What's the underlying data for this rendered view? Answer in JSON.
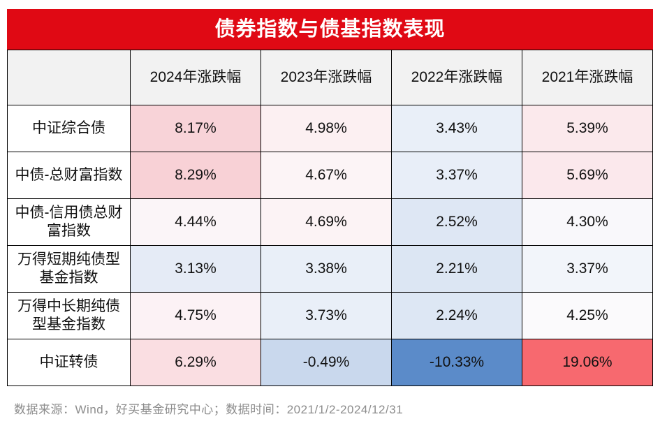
{
  "title": "债券指数与债基指数表现",
  "colors": {
    "title_bg": "#E00914",
    "title_text": "#FFFFFF",
    "header_bg": "#F2F2F2",
    "border": "#000000",
    "footer_text": "#8C8C8C",
    "strong_red": "#F7696F",
    "strong_blue": "#5B8BC9"
  },
  "chart_data": {
    "type": "table",
    "subtype": "heatmap",
    "title": "债券指数与债基指数表现",
    "columns": [
      "",
      "2024年涨跌幅",
      "2023年涨跌幅",
      "2022年涨跌幅",
      "2021年涨跌幅"
    ],
    "rows": [
      {
        "label": "中证综合债",
        "values": [
          "8.17%",
          "4.98%",
          "3.43%",
          "5.39%"
        ],
        "numeric": [
          8.17,
          4.98,
          3.43,
          5.39
        ],
        "colors": [
          "#F8D3D8",
          "#FCF0F2",
          "#E9EFF8",
          "#FBE9EC"
        ]
      },
      {
        "label": "中债-总财富指数",
        "values": [
          "8.29%",
          "4.67%",
          "3.37%",
          "5.69%"
        ],
        "numeric": [
          8.29,
          4.67,
          3.37,
          5.69
        ],
        "colors": [
          "#F8D1D6",
          "#FCF4F6",
          "#E8EEF8",
          "#FBE8EC"
        ]
      },
      {
        "label": "中债-信用债总财富指数",
        "values": [
          "4.44%",
          "4.69%",
          "2.52%",
          "4.30%"
        ],
        "numeric": [
          4.44,
          4.69,
          2.52,
          4.3
        ],
        "colors": [
          "#FBF5F8",
          "#FCF3F5",
          "#DEE7F4",
          "#F9F8FB"
        ]
      },
      {
        "label": "万得短期纯债型基金指数",
        "values": [
          "3.13%",
          "3.38%",
          "2.21%",
          "3.37%"
        ],
        "numeric": [
          3.13,
          3.38,
          2.21,
          3.37
        ],
        "colors": [
          "#E5EBF6",
          "#E9EFF8",
          "#DCE6F3",
          "#F2F5FA"
        ]
      },
      {
        "label": "万得中长期纯债型基金指数",
        "values": [
          "4.75%",
          "3.73%",
          "2.24%",
          "4.25%"
        ],
        "numeric": [
          4.75,
          3.73,
          2.24,
          4.25
        ],
        "colors": [
          "#FCF2F5",
          "#E9EFF8",
          "#DDE7F4",
          "#FBFAFC"
        ]
      },
      {
        "label": "中证转债",
        "values": [
          "6.29%",
          "-0.49%",
          "-10.33%",
          "19.06%"
        ],
        "numeric": [
          6.29,
          -0.49,
          -10.33,
          19.06
        ],
        "colors": [
          "#FADEE2",
          "#C9D8ED",
          "#5B8BC9",
          "#F7696F"
        ]
      }
    ],
    "heatmap_scale": {
      "style": "diverging blue-white-red",
      "min": -10.33,
      "mid": 4.3,
      "max": 19.06
    },
    "legend_position": "none",
    "grid": true
  },
  "footer": "数据来源：Wind，好买基金研究中心；数据时间：2021/1/2-2024/12/31"
}
